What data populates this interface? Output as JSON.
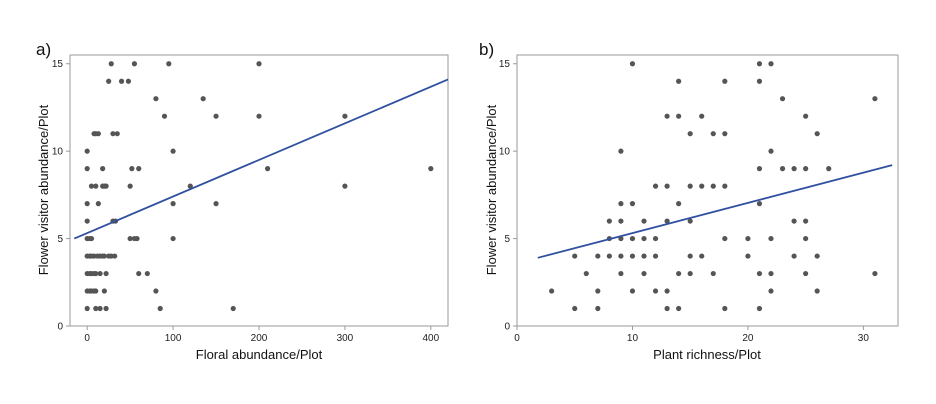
{
  "chart_data": [
    {
      "panel_label": "a)",
      "type": "scatter",
      "title": "",
      "xlabel": "Floral abundance/Plot",
      "ylabel": "Flower visitor abundance/Plot",
      "xlim": [
        -20,
        420
      ],
      "ylim": [
        0,
        15.5
      ],
      "xticks": [
        0,
        100,
        200,
        300,
        400
      ],
      "yticks": [
        0,
        5,
        10,
        15
      ],
      "grid": false,
      "point_color": "#555555",
      "line_color": "#3050a0",
      "fit_line": {
        "x": [
          -15,
          420
        ],
        "y": [
          5.0,
          14.1
        ]
      },
      "points": [
        [
          0,
          1
        ],
        [
          0,
          2
        ],
        [
          0,
          3
        ],
        [
          0,
          4
        ],
        [
          0,
          5
        ],
        [
          0,
          6
        ],
        [
          0,
          7
        ],
        [
          0,
          9
        ],
        [
          0,
          10
        ],
        [
          3,
          2
        ],
        [
          3,
          3
        ],
        [
          3,
          4
        ],
        [
          3,
          5
        ],
        [
          5,
          2
        ],
        [
          5,
          3
        ],
        [
          5,
          4
        ],
        [
          5,
          5
        ],
        [
          5,
          8
        ],
        [
          8,
          2
        ],
        [
          8,
          3
        ],
        [
          8,
          4
        ],
        [
          8,
          11
        ],
        [
          10,
          1
        ],
        [
          10,
          2
        ],
        [
          10,
          3
        ],
        [
          10,
          8
        ],
        [
          10,
          11
        ],
        [
          12,
          4
        ],
        [
          13,
          7
        ],
        [
          13,
          11
        ],
        [
          15,
          1
        ],
        [
          15,
          3
        ],
        [
          15,
          4
        ],
        [
          18,
          4
        ],
        [
          18,
          8
        ],
        [
          18,
          9
        ],
        [
          20,
          2
        ],
        [
          20,
          4
        ],
        [
          20,
          8
        ],
        [
          22,
          1
        ],
        [
          22,
          3
        ],
        [
          22,
          8
        ],
        [
          25,
          4
        ],
        [
          25,
          14
        ],
        [
          28,
          4
        ],
        [
          28,
          15
        ],
        [
          30,
          6
        ],
        [
          30,
          11
        ],
        [
          32,
          4
        ],
        [
          33,
          6
        ],
        [
          35,
          11
        ],
        [
          40,
          14
        ],
        [
          48,
          14
        ],
        [
          50,
          5
        ],
        [
          50,
          8
        ],
        [
          52,
          9
        ],
        [
          55,
          15
        ],
        [
          55,
          5
        ],
        [
          58,
          5
        ],
        [
          60,
          9
        ],
        [
          60,
          3
        ],
        [
          70,
          3
        ],
        [
          80,
          2
        ],
        [
          80,
          13
        ],
        [
          85,
          1
        ],
        [
          90,
          12
        ],
        [
          95,
          15
        ],
        [
          100,
          10
        ],
        [
          100,
          7
        ],
        [
          100,
          5
        ],
        [
          120,
          8
        ],
        [
          135,
          13
        ],
        [
          150,
          12
        ],
        [
          150,
          7
        ],
        [
          170,
          1
        ],
        [
          200,
          15
        ],
        [
          200,
          12
        ],
        [
          210,
          9
        ],
        [
          300,
          12
        ],
        [
          300,
          8
        ],
        [
          400,
          9
        ]
      ]
    },
    {
      "panel_label": "b)",
      "type": "scatter",
      "title": "",
      "xlabel": "Plant richness/Plot",
      "ylabel": "Flower visitor abundance/Plot",
      "xlim": [
        0,
        33
      ],
      "ylim": [
        0,
        15.5
      ],
      "xticks": [
        0,
        10,
        20,
        30
      ],
      "yticks": [
        0,
        5,
        10,
        15
      ],
      "grid": false,
      "point_color": "#555555",
      "line_color": "#3050a0",
      "fit_line": {
        "x": [
          1.8,
          32.5
        ],
        "y": [
          3.9,
          9.2
        ]
      },
      "points": [
        [
          3,
          2
        ],
        [
          5,
          1
        ],
        [
          5,
          4
        ],
        [
          6,
          3
        ],
        [
          7,
          1
        ],
        [
          7,
          2
        ],
        [
          7,
          4
        ],
        [
          8,
          4
        ],
        [
          8,
          5
        ],
        [
          8,
          6
        ],
        [
          9,
          3
        ],
        [
          9,
          4
        ],
        [
          9,
          5
        ],
        [
          9,
          6
        ],
        [
          9,
          7
        ],
        [
          9,
          10
        ],
        [
          10,
          2
        ],
        [
          10,
          4
        ],
        [
          10,
          5
        ],
        [
          10,
          7
        ],
        [
          10,
          15
        ],
        [
          11,
          3
        ],
        [
          11,
          4
        ],
        [
          11,
          5
        ],
        [
          11,
          6
        ],
        [
          12,
          2
        ],
        [
          12,
          4
        ],
        [
          12,
          5
        ],
        [
          12,
          8
        ],
        [
          13,
          1
        ],
        [
          13,
          2
        ],
        [
          13,
          6
        ],
        [
          13,
          8
        ],
        [
          13,
          12
        ],
        [
          14,
          1
        ],
        [
          14,
          3
        ],
        [
          14,
          7
        ],
        [
          14,
          12
        ],
        [
          14,
          14
        ],
        [
          15,
          3
        ],
        [
          15,
          4
        ],
        [
          15,
          6
        ],
        [
          15,
          8
        ],
        [
          15,
          11
        ],
        [
          16,
          4
        ],
        [
          16,
          8
        ],
        [
          16,
          12
        ],
        [
          17,
          3
        ],
        [
          17,
          8
        ],
        [
          17,
          11
        ],
        [
          18,
          1
        ],
        [
          18,
          5
        ],
        [
          18,
          8
        ],
        [
          18,
          11
        ],
        [
          18,
          14
        ],
        [
          20,
          4
        ],
        [
          20,
          5
        ],
        [
          21,
          1
        ],
        [
          21,
          3
        ],
        [
          21,
          7
        ],
        [
          21,
          9
        ],
        [
          21,
          14
        ],
        [
          21,
          15
        ],
        [
          22,
          2
        ],
        [
          22,
          3
        ],
        [
          22,
          5
        ],
        [
          22,
          10
        ],
        [
          22,
          15
        ],
        [
          23,
          9
        ],
        [
          23,
          13
        ],
        [
          24,
          4
        ],
        [
          24,
          6
        ],
        [
          24,
          9
        ],
        [
          25,
          3
        ],
        [
          25,
          5
        ],
        [
          25,
          6
        ],
        [
          25,
          9
        ],
        [
          25,
          12
        ],
        [
          26,
          2
        ],
        [
          26,
          4
        ],
        [
          26,
          11
        ],
        [
          27,
          9
        ],
        [
          31,
          3
        ],
        [
          31,
          13
        ]
      ]
    }
  ]
}
